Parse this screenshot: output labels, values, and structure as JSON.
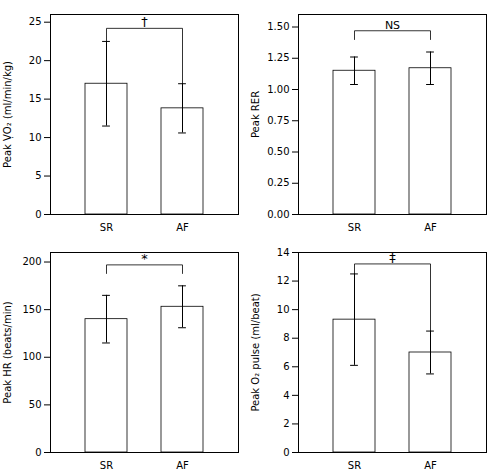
{
  "chart_data": [
    {
      "type": "bar",
      "ylabel": "Peak ṾO₂ (ml/min/kg)",
      "categories": [
        "SR",
        "AF"
      ],
      "values": [
        17.0,
        13.8
      ],
      "errors": [
        5.5,
        3.2
      ],
      "color": "#ffffff",
      "ylim": [
        0,
        26
      ],
      "yticks": [
        0,
        5,
        10,
        15,
        20,
        25
      ],
      "grid": false,
      "significance": {
        "text": "†",
        "y": 24.2,
        "left_base": 22.5,
        "right_base": 16.8
      }
    },
    {
      "type": "bar",
      "ylabel": "Peak RER",
      "categories": [
        "SR",
        "AF"
      ],
      "values": [
        1.15,
        1.17
      ],
      "errors": [
        0.11,
        0.13
      ],
      "color": "#ffffff",
      "ylim": [
        0,
        1.6
      ],
      "yticks": [
        {
          "value": 0,
          "label": "0.00"
        },
        0.25,
        {
          "value": 0.5,
          "label": "0.50"
        },
        0.75,
        {
          "value": 1.0,
          "label": "1.00"
        },
        1.25,
        {
          "value": 1.5,
          "label": "1.50"
        }
      ],
      "grid": false,
      "significance": {
        "text": "NS",
        "y": 1.47,
        "left_base": 1.4,
        "right_base": 1.4
      }
    },
    {
      "type": "bar",
      "ylabel": "Peak HR (beats/min)",
      "categories": [
        "SR",
        "AF"
      ],
      "values": [
        140,
        153
      ],
      "errors": [
        25,
        22
      ],
      "color": "#ffffff",
      "ylim": [
        0,
        210
      ],
      "yticks": [
        0,
        50,
        100,
        150,
        200
      ],
      "grid": false,
      "significance": {
        "text": "*",
        "y": 197,
        "left_base": 188,
        "right_base": 188
      }
    },
    {
      "type": "bar",
      "ylabel": "Peak O₂ pulse (ml/beat)",
      "categories": [
        "SR",
        "AF"
      ],
      "values": [
        9.3,
        7.0
      ],
      "errors": [
        3.2,
        1.5
      ],
      "color": "#ffffff",
      "ylim": [
        0,
        14
      ],
      "yticks": [
        0,
        2,
        4,
        6,
        8,
        10,
        12,
        14
      ],
      "grid": false,
      "significance": {
        "text": "‡",
        "y": 13.2,
        "left_base": 12.5,
        "right_base": 8.5
      }
    }
  ]
}
